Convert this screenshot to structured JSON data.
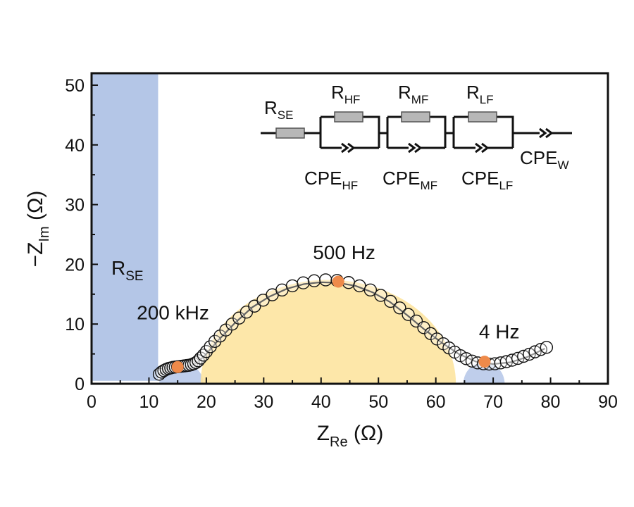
{
  "chart_data": {
    "type": "scatter",
    "xlabel": {
      "main": "Z",
      "sub": "Re",
      "unit": " (Ω)"
    },
    "ylabel": {
      "main": "−Z",
      "sub": "Im",
      "unit": " (Ω)"
    },
    "xlim": [
      0,
      90
    ],
    "ylim": [
      0,
      52
    ],
    "xticks": [
      "0",
      "10",
      "20",
      "30",
      "40",
      "50",
      "60",
      "70",
      "80",
      "90"
    ],
    "yticks": [
      "0",
      "10",
      "20",
      "30",
      "40",
      "50"
    ],
    "grid": false,
    "series": [
      {
        "marker": "open-circle",
        "points": [
          [
            11.8,
            1.6
          ],
          [
            12.2,
            1.95
          ],
          [
            12.6,
            2.2
          ],
          [
            13.0,
            2.4
          ],
          [
            13.4,
            2.55
          ],
          [
            13.8,
            2.65
          ],
          [
            14.2,
            2.75
          ],
          [
            14.6,
            2.8
          ],
          [
            15.0,
            2.85
          ],
          [
            15.4,
            2.9
          ],
          [
            15.8,
            2.95
          ],
          [
            16.2,
            3.0
          ],
          [
            16.6,
            3.05
          ],
          [
            17.0,
            3.1
          ],
          [
            17.4,
            3.2
          ],
          [
            17.8,
            3.35
          ],
          [
            18.2,
            3.55
          ],
          [
            18.6,
            3.85
          ],
          [
            19.0,
            4.3
          ],
          [
            19.5,
            4.8
          ],
          [
            20.0,
            5.4
          ],
          [
            20.7,
            6.2
          ],
          [
            21.5,
            7.1
          ],
          [
            22.4,
            8.0
          ],
          [
            23.4,
            9.0
          ],
          [
            24.5,
            10.0
          ],
          [
            25.7,
            11.0
          ],
          [
            27.0,
            12.0
          ],
          [
            28.4,
            13.0
          ],
          [
            29.9,
            14.0
          ],
          [
            31.5,
            14.9
          ],
          [
            33.2,
            15.7
          ],
          [
            35.0,
            16.4
          ],
          [
            36.9,
            16.9
          ],
          [
            38.8,
            17.25
          ],
          [
            40.8,
            17.4
          ],
          [
            42.8,
            17.3
          ],
          [
            44.8,
            16.95
          ],
          [
            46.7,
            16.4
          ],
          [
            48.6,
            15.7
          ],
          [
            50.4,
            14.8
          ],
          [
            52.1,
            13.8
          ],
          [
            53.7,
            12.7
          ],
          [
            55.2,
            11.6
          ],
          [
            56.6,
            10.5
          ],
          [
            57.9,
            9.4
          ],
          [
            59.1,
            8.4
          ],
          [
            60.2,
            7.5
          ],
          [
            61.3,
            6.7
          ],
          [
            62.3,
            6.0
          ],
          [
            63.3,
            5.3
          ],
          [
            64.3,
            4.7
          ],
          [
            65.3,
            4.2
          ],
          [
            66.3,
            3.8
          ],
          [
            67.3,
            3.5
          ],
          [
            68.3,
            3.35
          ],
          [
            69.3,
            3.3
          ],
          [
            70.3,
            3.35
          ],
          [
            71.3,
            3.5
          ],
          [
            72.3,
            3.7
          ],
          [
            73.3,
            3.95
          ],
          [
            74.3,
            4.25
          ],
          [
            75.3,
            4.6
          ],
          [
            76.3,
            4.95
          ],
          [
            77.3,
            5.35
          ],
          [
            78.3,
            5.75
          ],
          [
            79.3,
            6.1
          ]
        ]
      }
    ],
    "fit_line": [
      [
        11.8,
        1.7
      ],
      [
        13,
        2.3
      ],
      [
        15,
        2.75
      ],
      [
        17,
        3.0
      ],
      [
        18.5,
        3.6
      ],
      [
        20,
        5.0
      ],
      [
        22,
        7.2
      ],
      [
        25,
        10.2
      ],
      [
        28,
        12.8
      ],
      [
        31,
        14.6
      ],
      [
        34,
        15.9
      ],
      [
        37,
        16.7
      ],
      [
        40,
        17.0
      ],
      [
        43,
        16.9
      ],
      [
        46,
        16.4
      ],
      [
        49,
        15.3
      ],
      [
        52,
        13.7
      ],
      [
        55,
        11.5
      ],
      [
        58,
        9.1
      ],
      [
        61,
        6.9
      ],
      [
        64,
        5.0
      ],
      [
        67,
        3.7
      ],
      [
        70,
        3.3
      ],
      [
        73,
        3.6
      ],
      [
        76,
        4.5
      ],
      [
        79,
        5.9
      ]
    ],
    "highlights": [
      {
        "x": 15.0,
        "y": 2.8,
        "label": "200 kHz",
        "color": "#ee8a4a"
      },
      {
        "x": 43.0,
        "y": 17.1,
        "label": "500 Hz",
        "color": "#ee8a4a"
      },
      {
        "x": 68.5,
        "y": 3.7,
        "label": "4 Hz",
        "color": "#ee8a4a"
      }
    ],
    "regions": {
      "rse_band": {
        "x": [
          0,
          11.6
        ],
        "label_main": "R",
        "label_sub": "SE",
        "color": "#b4c6e7"
      },
      "hf_arc": {
        "x": [
          11.8,
          19.5
        ],
        "color": "#b4c6e7"
      },
      "mf_arc": {
        "x": [
          19.0,
          63.5
        ],
        "color": "#fde39a"
      },
      "lf_arc": {
        "x": [
          64.8,
          72.0
        ],
        "color": "#b4c6e7"
      }
    },
    "circuit": {
      "resistors": [
        {
          "main": "R",
          "sub": "SE"
        },
        {
          "main": "R",
          "sub": "HF"
        },
        {
          "main": "R",
          "sub": "MF"
        },
        {
          "main": "R",
          "sub": "LF"
        }
      ],
      "cpes": [
        {
          "main": "CPE",
          "sub": "HF"
        },
        {
          "main": "CPE",
          "sub": "MF"
        },
        {
          "main": "CPE",
          "sub": "LF"
        },
        {
          "main": "CPE",
          "sub": "W"
        }
      ]
    }
  }
}
